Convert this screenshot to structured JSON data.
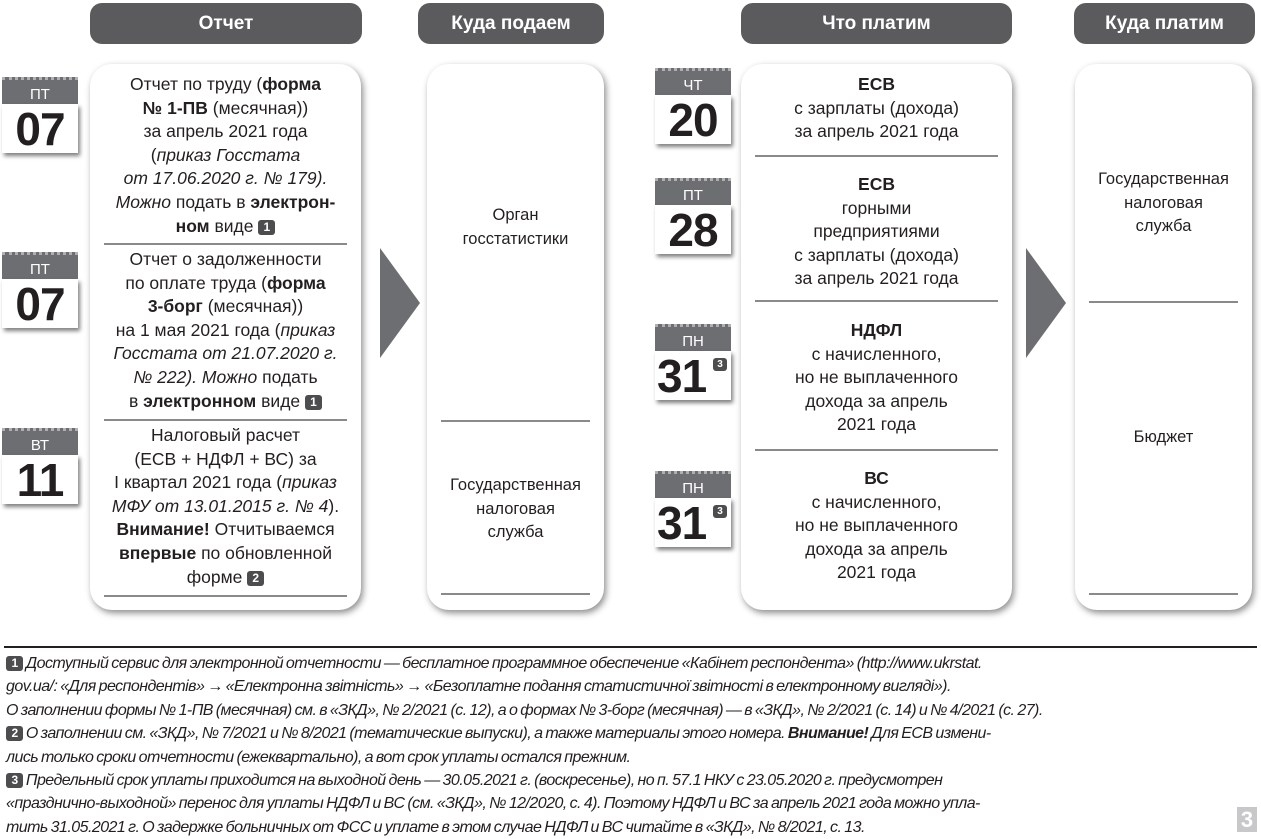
{
  "headers": [
    "Отчет",
    "Куда подаем",
    "Что платим",
    "Куда платим"
  ],
  "report": {
    "items": [
      {
        "day": "ПТ",
        "date": "07",
        "segs": [
          [
            "Отчет по труду ("
          ],
          [
            "форма",
            "b"
          ],
          [
            "\n"
          ],
          [
            "№ 1-ПВ",
            "b"
          ],
          [
            " (месячная))\nза апрель 2021 года\n("
          ],
          [
            "приказ Госстата\nот 17.06.2020 г. № 179).",
            "i"
          ],
          [
            "\n"
          ],
          [
            "Можно",
            "i"
          ],
          [
            " подать в "
          ],
          [
            "электрон-\nном",
            "b"
          ],
          [
            " виде "
          ],
          [
            "1",
            "badge"
          ]
        ]
      },
      {
        "day": "ПТ",
        "date": "07",
        "segs": [
          [
            "Отчет о задолженности\nпо оплате труда ("
          ],
          [
            "форма\n3-борг",
            "b"
          ],
          [
            " (месячная))\nна 1 мая 2021 года ("
          ],
          [
            "приказ\nГосстата от 21.07.2020 г.\n№ 222). Можно",
            "i"
          ],
          [
            " подать\nв "
          ],
          [
            "электронном",
            "b"
          ],
          [
            " виде "
          ],
          [
            "1",
            "badge"
          ]
        ]
      },
      {
        "day": "ВТ",
        "date": "11",
        "segs": [
          [
            "Налоговый расчет\n(ЕСВ + НДФЛ + ВС) за\nI квартал 2021 года ("
          ],
          [
            "приказ\nМФУ от 13.01.2015 г. № 4",
            "i"
          ],
          [
            ").\n"
          ],
          [
            "Внимание!",
            "b"
          ],
          [
            " Отчитываемся\n"
          ],
          [
            "впервые",
            "b"
          ],
          [
            " по обновленной\nформе "
          ],
          [
            "2",
            "badge"
          ]
        ]
      }
    ]
  },
  "submit_to": [
    "Орган\nгосстатистики",
    "Государственная\nналоговая\nслужба"
  ],
  "payments": [
    {
      "day": "ЧТ",
      "date": "20",
      "title": "ЕСВ",
      "text": "с зарплаты (дохода)\nза апрель 2021 года"
    },
    {
      "day": "ПТ",
      "date": "28",
      "title": "ЕСВ",
      "text": "горными\nпредприятиями\nс зарплаты (дохода)\nза апрель 2021 года"
    },
    {
      "day": "ПН",
      "date": "31",
      "note": "3",
      "title": "НДФЛ",
      "text": "с начисленного,\nно не выплаченного\nдохода за апрель\n2021 года"
    },
    {
      "day": "ПН",
      "date": "31",
      "note": "3",
      "title": "ВС",
      "text": "с начисленного,\nно не выплаченного\nдохода за апрель\n2021 года"
    }
  ],
  "pay_to": [
    "Государственная\nналоговая\nслужба",
    "Бюджет"
  ],
  "footnotes": [
    [
      [
        "1",
        "badge"
      ],
      [
        " Доступный сервис для электронной отчетности — бесплатное программное обеспечение «Кабінет респондента» (http://www.ukrstat."
      ]
    ],
    [
      [
        "gov.ua/: «Для респондентів» → «Електронна звітність» → «Безоплатне подання статистичної звітності в електронному вигляді»)."
      ]
    ],
    [
      [
        "О заполнении формы № 1-ПВ (месячная) см. в «ЗКД», № 2/2021 (с. 12), а о формах № 3-борг (месячная) — в «ЗКД», № 2/2021 (с. 14) и № 4/2021 (с. 27)."
      ]
    ],
    [
      [
        "2",
        "badge"
      ],
      [
        " О заполнении см. «ЗКД», № 7/2021 и № 8/2021 (тематические выпуски), а также материалы этого номера. "
      ],
      [
        "Внимание!",
        "b"
      ],
      [
        " Для ЕСВ измени-"
      ]
    ],
    [
      [
        "лись только сроки отчетности (ежеквартально), а вот срок уплаты остался прежним."
      ]
    ],
    [
      [
        "3",
        "badge"
      ],
      [
        " Предельный срок уплаты приходится на выходной день — 30.05.2021 г. (воскресенье), но п. 57.1 НКУ с 23.05.2020 г. предусмотрен"
      ]
    ],
    [
      [
        "«празднично-выходной» перенос для уплаты НДФЛ и ВС (см. «ЗКД», № 12/2020, с. 4). Поэтому НДФЛ и ВС за апрель 2021 года можно упла-"
      ]
    ],
    [
      [
        "тить 31.05.2021 г. О задержке больничных от ФСС и уплате в этом случае НДФЛ и ВС читайте в «ЗКД», № 8/2021, с. 13."
      ]
    ]
  ],
  "page_number": "3"
}
